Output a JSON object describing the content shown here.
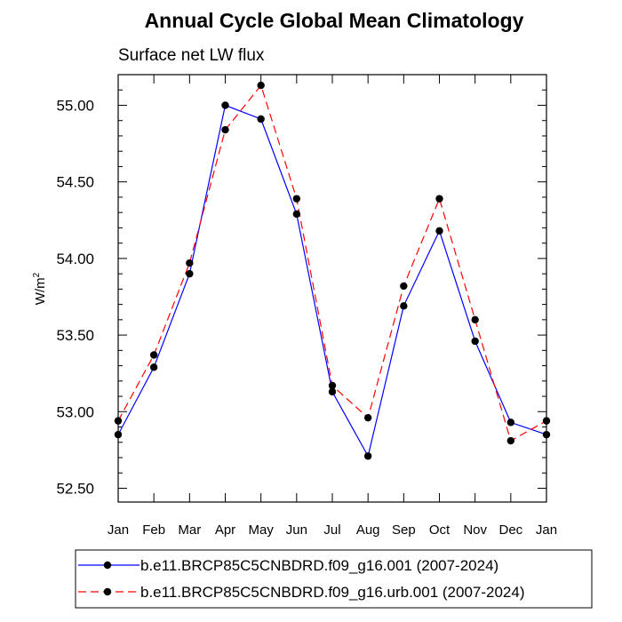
{
  "chart_data": {
    "type": "line",
    "title": "Annual Cycle Global Mean Climatology",
    "subtitle": "Surface net LW flux",
    "ylabel": "W/m",
    "ylabel_superscript": "2",
    "xlabel": "",
    "categories": [
      "Jan",
      "Feb",
      "Mar",
      "Apr",
      "May",
      "Jun",
      "Jul",
      "Aug",
      "Sep",
      "Oct",
      "Nov",
      "Dec",
      "Jan"
    ],
    "ylim": [
      52.41,
      55.2
    ],
    "y_ticks": [
      52.5,
      53.0,
      53.5,
      54.0,
      54.5,
      55.0
    ],
    "y_tick_labels": [
      "52.50",
      "53.00",
      "53.50",
      "54.00",
      "54.50",
      "55.00"
    ],
    "grid": false,
    "legend_position": "bottom",
    "series": [
      {
        "name": "b.e11.BRCP85C5CNBDRD.f09_g16.001 (2007-2024)",
        "color": "#0000ff",
        "dash": "solid",
        "values": [
          52.85,
          53.29,
          53.9,
          55.0,
          54.91,
          54.29,
          53.13,
          52.71,
          53.69,
          54.18,
          53.46,
          52.93,
          52.85
        ]
      },
      {
        "name": "b.e11.BRCP85C5CNBDRD.f09_g16.urb.001 (2007-2024)",
        "color": "#ff0000",
        "dash": "dashed",
        "values": [
          52.94,
          53.37,
          53.97,
          54.84,
          55.13,
          54.39,
          53.17,
          52.96,
          53.82,
          54.39,
          53.6,
          52.81,
          52.94
        ]
      }
    ]
  }
}
